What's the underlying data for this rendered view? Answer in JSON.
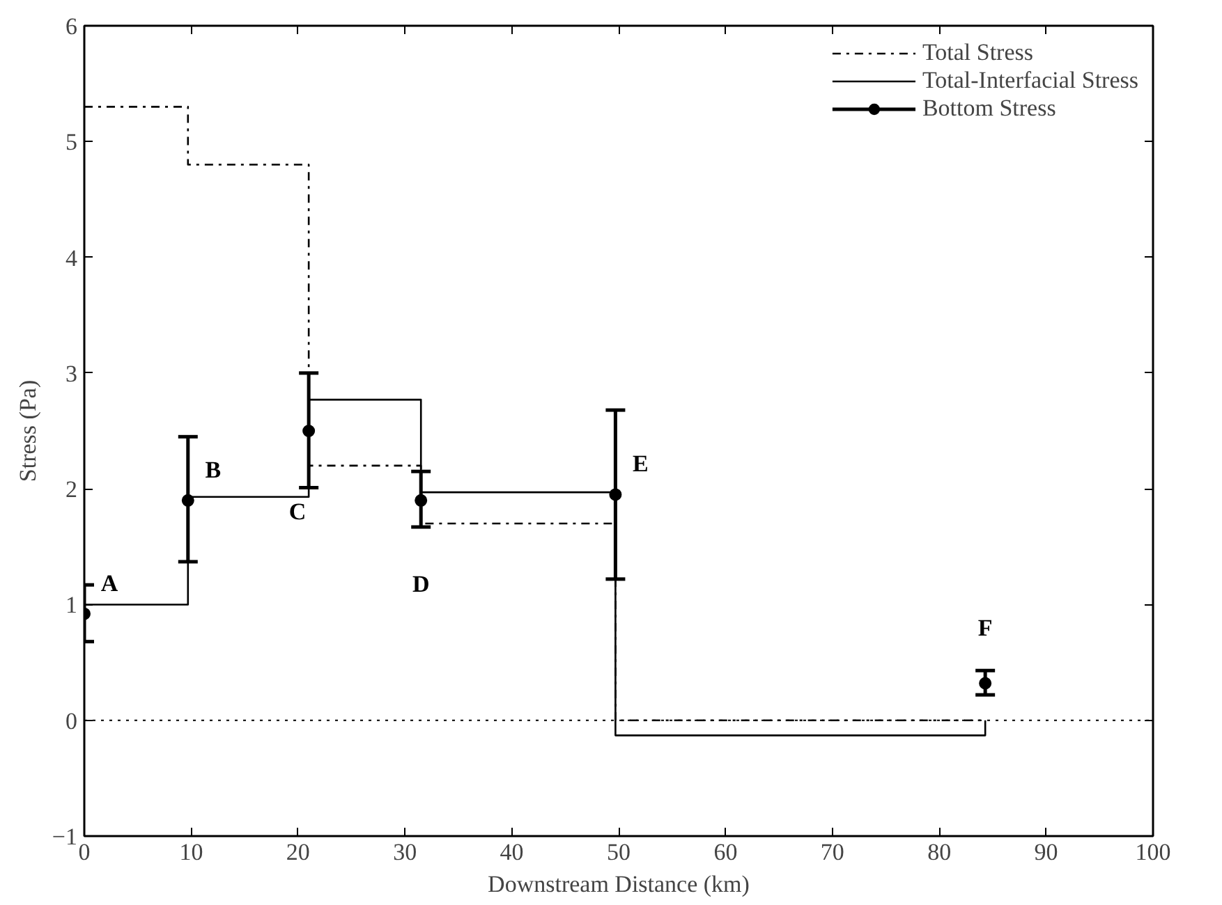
{
  "chart_data": {
    "type": "step",
    "xlabel": "Downstream Distance (km)",
    "ylabel": "Stress (Pa)",
    "xlim": [
      0,
      100
    ],
    "ylim": [
      -1,
      6
    ],
    "xticks": [
      0,
      10,
      20,
      30,
      40,
      50,
      60,
      70,
      80,
      90,
      100
    ],
    "yticks": [
      -1,
      0,
      1,
      2,
      3,
      4,
      5,
      6
    ],
    "x": [
      0,
      9.7,
      21,
      31.5,
      49.7,
      84.3
    ],
    "series": [
      {
        "name": "Total Stress",
        "color": "#000000",
        "line_style": "dashdot",
        "values": [
          5.3,
          4.8,
          2.2,
          1.7,
          0,
          0
        ]
      },
      {
        "name": "Total-Interfacial Stress",
        "color": "#000000",
        "line_style": "solid",
        "values": [
          1.0,
          1.93,
          2.77,
          1.97,
          -0.13,
          0
        ]
      },
      {
        "name": "Bottom Stress",
        "type": "scatter",
        "color": "#000000",
        "marker": "circle",
        "values": [
          0.92,
          1.9,
          2.5,
          1.9,
          1.95,
          0.32
        ],
        "errors": [
          [
            0.68,
            1.17
          ],
          [
            1.37,
            2.45
          ],
          [
            2.01,
            3.0
          ],
          [
            1.67,
            2.15
          ],
          [
            1.22,
            2.68
          ],
          [
            0.22,
            0.43
          ]
        ]
      }
    ],
    "ref_lines": [
      {
        "axis": "y",
        "value": 0,
        "label": null,
        "color": "#000000",
        "line_style": "dotted"
      }
    ],
    "annotations": [
      {
        "text": "A",
        "x": 0,
        "y": 0.92
      },
      {
        "text": "B",
        "x": 9.7,
        "y": 1.9
      },
      {
        "text": "C",
        "x": 21,
        "y": 2.5
      },
      {
        "text": "D",
        "x": 31.5,
        "y": 1.9
      },
      {
        "text": "E",
        "x": 49.7,
        "y": 1.95
      },
      {
        "text": "F",
        "x": 84.3,
        "y": 0.32
      }
    ],
    "legend": "top right",
    "grid": false
  }
}
